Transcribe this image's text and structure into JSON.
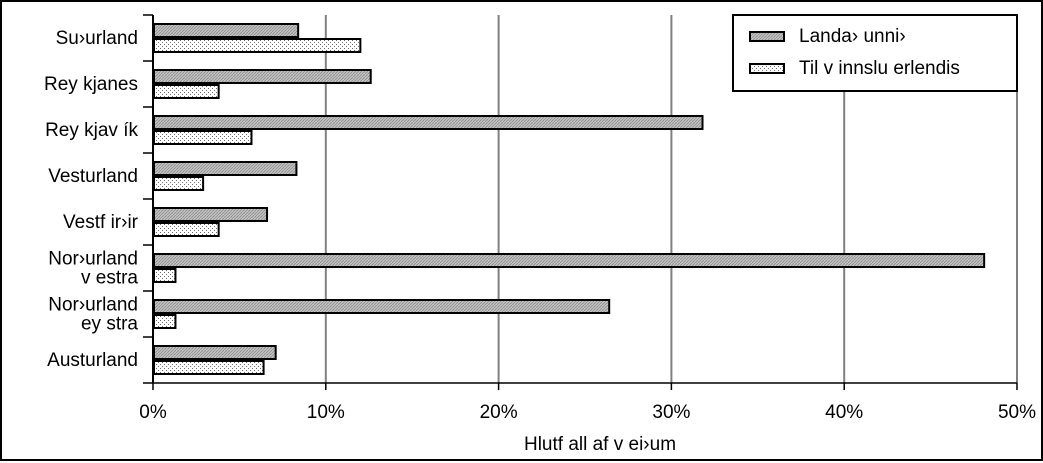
{
  "chart_data": {
    "type": "bar",
    "orientation": "horizontal",
    "categories": [
      [
        "Su›urland"
      ],
      [
        "Rey kjanes"
      ],
      [
        "Rey kjav ík"
      ],
      [
        "Vesturland"
      ],
      [
        "Vestf ir›ir"
      ],
      [
        "Nor›urland",
        "v estra"
      ],
      [
        "Nor›urland",
        "ey stra"
      ],
      [
        "Austurland"
      ]
    ],
    "series": [
      {
        "name": "Landa› unni›",
        "pattern": "grey-striped",
        "values": [
          8.4,
          12.6,
          31.8,
          8.3,
          6.6,
          48.1,
          26.4,
          7.1
        ]
      },
      {
        "name": "Til v innslu erlendis",
        "pattern": "dotted",
        "values": [
          12.0,
          3.8,
          5.7,
          2.9,
          3.8,
          1.3,
          1.3,
          6.4
        ]
      }
    ],
    "xlim": [
      0,
      50
    ],
    "xticks": [
      "0%",
      "10%",
      "20%",
      "30%",
      "40%",
      "50%"
    ],
    "xlabel": "Hlutf all af  v ei›um",
    "ylabel": "",
    "grid": "vertical",
    "legend": "top-right"
  }
}
